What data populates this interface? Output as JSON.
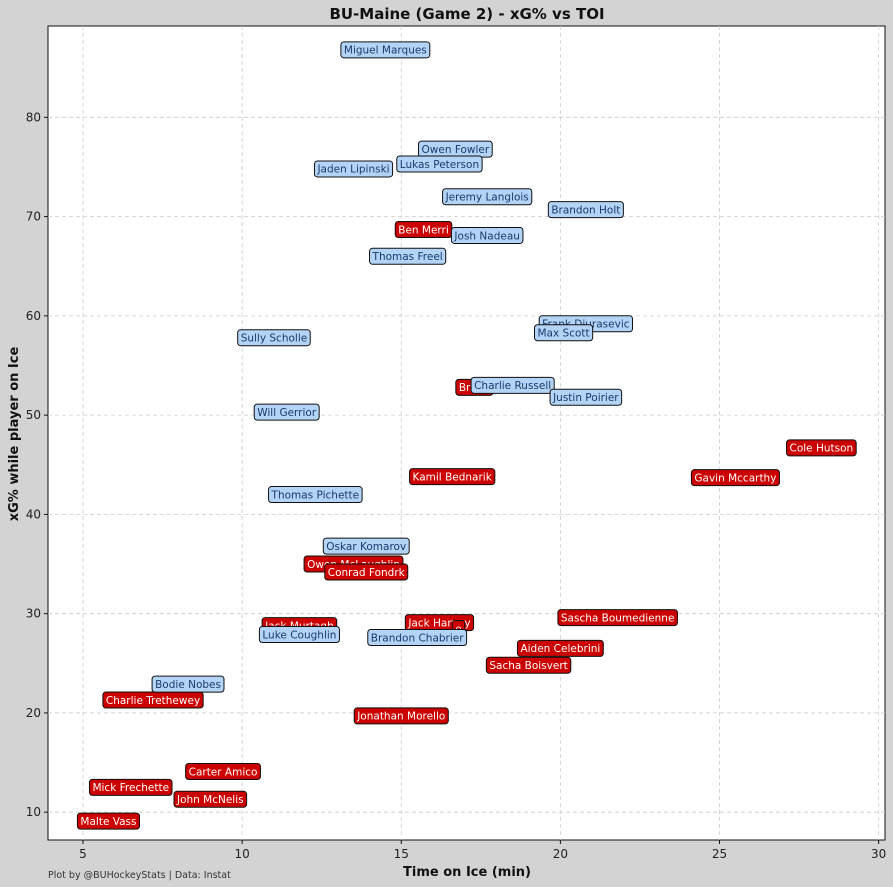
{
  "chart_data": {
    "type": "scatter",
    "title": "BU-Maine (Game 2) - xG% vs TOI",
    "xlabel": "Time on Ice (min)",
    "ylabel": "xG% while player on Ice",
    "xlim": [
      3.9,
      30.2
    ],
    "ylim": [
      7.2,
      89.2
    ],
    "xticks": [
      5,
      10,
      15,
      20,
      25,
      30
    ],
    "yticks": [
      10,
      20,
      30,
      40,
      50,
      60,
      70,
      80
    ],
    "grid": true,
    "colors": {
      "BU": "#b3d4f7",
      "Maine": "#cc0000"
    },
    "series": [
      {
        "name": "BU",
        "points": [
          {
            "player": "Miguel Marques",
            "toi": 14.5,
            "xg": 86.8
          },
          {
            "player": "Owen Fowler",
            "toi": 16.7,
            "xg": 76.8
          },
          {
            "player": "Lukas Peterson",
            "toi": 16.2,
            "xg": 75.3
          },
          {
            "player": "Jaden Lipinski",
            "toi": 13.5,
            "xg": 74.8
          },
          {
            "player": "Jeremy Langlois",
            "toi": 17.7,
            "xg": 72.0
          },
          {
            "player": "Brandon Holt",
            "toi": 20.8,
            "xg": 70.7
          },
          {
            "player": "Josh Nadeau",
            "toi": 17.7,
            "xg": 68.1
          },
          {
            "player": "Thomas Freel",
            "toi": 15.2,
            "xg": 66.0
          },
          {
            "player": "Frank Djurasevic",
            "toi": 20.8,
            "xg": 59.2
          },
          {
            "player": "Max Scott",
            "toi": 20.1,
            "xg": 58.3
          },
          {
            "player": "Sully Scholle",
            "toi": 11.0,
            "xg": 57.8
          },
          {
            "player": "Charlie Russell",
            "toi": 18.5,
            "xg": 53.0
          },
          {
            "player": "Justin Poirier",
            "toi": 20.8,
            "xg": 51.8
          },
          {
            "player": "Will Gerrior",
            "toi": 11.4,
            "xg": 50.3
          },
          {
            "player": "Thomas Pichette",
            "toi": 12.3,
            "xg": 42.0
          },
          {
            "player": "Oskar Komarov",
            "toi": 13.9,
            "xg": 36.8
          },
          {
            "player": "Luke Coughlin",
            "toi": 11.8,
            "xg": 27.9
          },
          {
            "player": "Brandon Chabrier",
            "toi": 15.5,
            "xg": 27.6
          },
          {
            "player": "Bodie Nobes",
            "toi": 8.3,
            "xg": 22.9
          }
        ]
      },
      {
        "name": "Maine",
        "points": [
          {
            "player": "Ben Merrill",
            "toi": 15.7,
            "xg": 68.7,
            "label": "Ben Merri"
          },
          {
            "player": "Brandon Holt",
            "toi": 17.3,
            "xg": 52.8,
            "label": "Brand"
          },
          {
            "player": "Cole Hutson",
            "toi": 28.2,
            "xg": 46.7
          },
          {
            "player": "Gavin Mccarthy",
            "toi": 25.5,
            "xg": 43.7
          },
          {
            "player": "Kamil Bednarik",
            "toi": 16.6,
            "xg": 43.8
          },
          {
            "player": "Owen McLaughlin",
            "toi": 13.5,
            "xg": 35.0
          },
          {
            "player": "Conrad Fondrk",
            "toi": 13.9,
            "xg": 34.2,
            "label": "Conrad Fondrk"
          },
          {
            "player": "Sascha Boumedienne",
            "toi": 21.8,
            "xg": 29.6
          },
          {
            "player": "Jack Harvey",
            "toi": 16.2,
            "xg": 29.1
          },
          {
            "player": "Jack Harvey 2",
            "toi": 16.8,
            "xg": 28.5,
            "label": "e"
          },
          {
            "player": "Jack Murtagh",
            "toi": 11.8,
            "xg": 28.8
          },
          {
            "player": "Aiden Celebrini",
            "toi": 20.0,
            "xg": 26.5
          },
          {
            "player": "Sacha Boisvert",
            "toi": 19.0,
            "xg": 24.8
          },
          {
            "player": "Charlie Trethewey",
            "toi": 7.2,
            "xg": 21.3
          },
          {
            "player": "Jonathan Morello",
            "toi": 15.0,
            "xg": 19.7
          },
          {
            "player": "Carter Amico",
            "toi": 9.4,
            "xg": 14.1
          },
          {
            "player": "Mick Frechette",
            "toi": 6.5,
            "xg": 12.5
          },
          {
            "player": "John McNelis",
            "toi": 9.0,
            "xg": 11.3
          },
          {
            "player": "Malte Vass",
            "toi": 5.8,
            "xg": 9.1
          }
        ]
      }
    ]
  },
  "footer": {
    "credit": "Plot by @BUHockeyStats | Data: Instat"
  }
}
